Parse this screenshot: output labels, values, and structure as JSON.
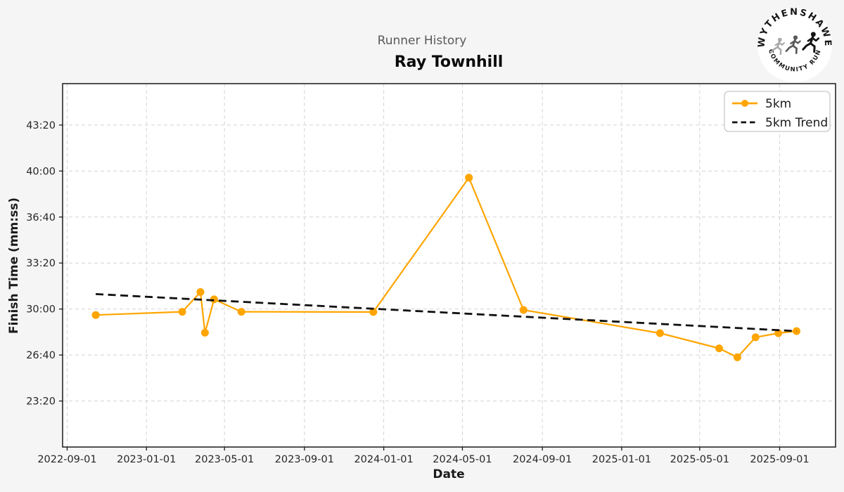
{
  "figure": {
    "background": "#f5f5f6",
    "plot_background": "#ffffff",
    "suptitle": "Runner History",
    "title": "Ray Townhill"
  },
  "logo": {
    "top_text": "WYTHENSHAWE",
    "bottom_text": "COMMUNITY RUN",
    "circle_color": "#ffffff",
    "runner_colors": [
      "#a8a8a8",
      "#5a5a5a",
      "#141414"
    ]
  },
  "chart_data": {
    "type": "line",
    "title": "Ray Townhill",
    "subtitle": "Runner History",
    "xlabel": "Date",
    "ylabel": "Finish Time (mm:ss)",
    "grid": true,
    "grid_color": "#d4d4d4",
    "xlim": [
      "2022-08-25",
      "2025-11-26"
    ],
    "ylim": [
      "20:00",
      "46:20"
    ],
    "x_ticks": [
      "2022-09-01",
      "2023-01-01",
      "2023-05-01",
      "2023-09-01",
      "2024-01-01",
      "2024-05-01",
      "2024-09-01",
      "2025-01-01",
      "2025-05-01",
      "2025-09-01"
    ],
    "y_ticks": [
      "23:20",
      "26:40",
      "30:00",
      "33:20",
      "36:40",
      "40:00",
      "43:20"
    ],
    "legend": {
      "position": "upper right"
    },
    "series": [
      {
        "name": "5km",
        "color": "#FFA500",
        "style": "solid",
        "marker": "circle",
        "points": [
          {
            "date": "2022-10-15",
            "time": "29:34"
          },
          {
            "date": "2023-02-25",
            "time": "29:48"
          },
          {
            "date": "2023-03-25",
            "time": "31:14"
          },
          {
            "date": "2023-04-01",
            "time": "28:17"
          },
          {
            "date": "2023-04-15",
            "time": "30:42"
          },
          {
            "date": "2023-05-27",
            "time": "29:48"
          },
          {
            "date": "2023-12-16",
            "time": "29:47"
          },
          {
            "date": "2024-05-11",
            "time": "39:31"
          },
          {
            "date": "2024-08-03",
            "time": "29:56"
          },
          {
            "date": "2025-03-01",
            "time": "28:15"
          },
          {
            "date": "2025-05-31",
            "time": "27:09"
          },
          {
            "date": "2025-06-28",
            "time": "26:30"
          },
          {
            "date": "2025-07-26",
            "time": "27:57"
          },
          {
            "date": "2025-08-30",
            "time": "28:15"
          },
          {
            "date": "2025-09-27",
            "time": "28:24"
          }
        ]
      },
      {
        "name": "5km Trend",
        "color": "#111111",
        "style": "dashed",
        "marker": "none",
        "points": [
          {
            "date": "2022-10-15",
            "time": "31:05"
          },
          {
            "date": "2025-09-27",
            "time": "28:24"
          }
        ]
      }
    ]
  }
}
